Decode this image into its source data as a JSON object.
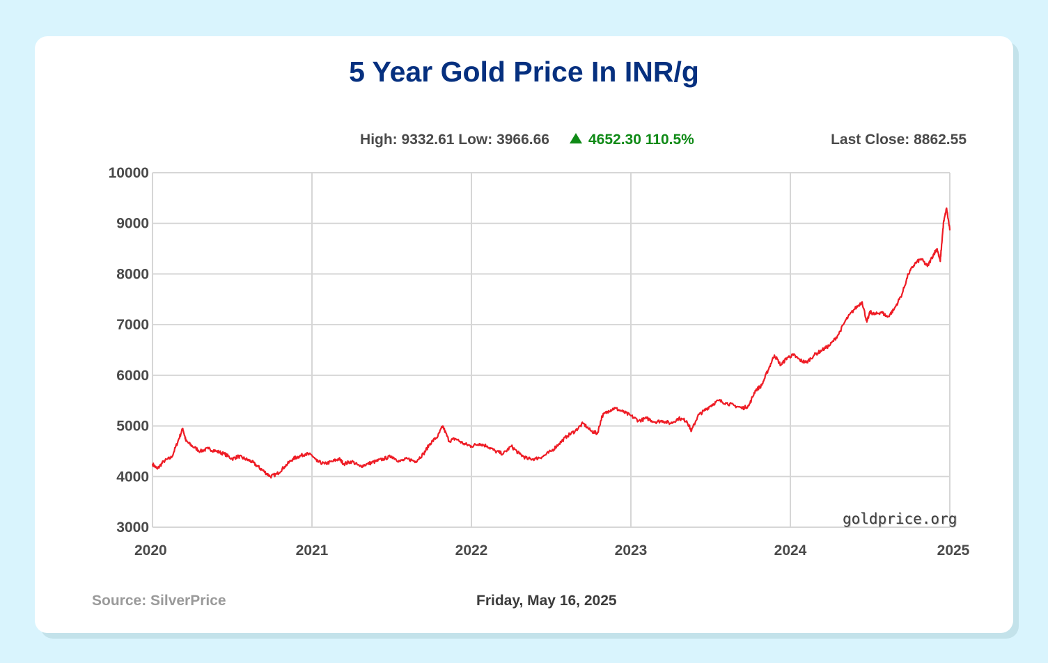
{
  "title": "5 Year Gold Price In INR/g",
  "stats": {
    "high_low": "High: 9332.61 Low: 3966.66",
    "change": "4652.30 110.5%",
    "last_close": "Last Close: 8862.55"
  },
  "footer": {
    "source": "Source: SilverPrice",
    "date": "Friday, May 16, 2025"
  },
  "watermark": "goldprice.org",
  "colors": {
    "line": "#ee1c25",
    "title": "#06307f",
    "up": "#0f8a16",
    "background": "#d9f4fd"
  },
  "chart_data": {
    "type": "line",
    "title": "5 Year Gold Price In INR/g",
    "xlabel": "",
    "ylabel": "",
    "xlim": [
      2020.0,
      2025.0
    ],
    "ylim": [
      3000,
      10000
    ],
    "x_ticks": [
      2020,
      2021,
      2022,
      2023,
      2024,
      2025
    ],
    "x_tick_labels": [
      "2020",
      "2021",
      "2022",
      "2023",
      "2024",
      "2025"
    ],
    "y_ticks": [
      3000,
      4000,
      5000,
      6000,
      7000,
      8000,
      9000,
      10000
    ],
    "y_tick_labels": [
      "3000",
      "4000",
      "5000",
      "6000",
      "7000",
      "8000",
      "9000",
      "10000"
    ],
    "grid": true,
    "series": [
      {
        "x": [
          2020.0,
          2020.03,
          2020.07,
          2020.12,
          2020.16,
          2020.19,
          2020.21,
          2020.25,
          2020.3,
          2020.35,
          2020.4,
          2020.45,
          2020.5,
          2020.54,
          2020.58,
          2020.62,
          2020.66,
          2020.7,
          2020.74,
          2020.78,
          2020.83,
          2020.88,
          2020.92,
          2020.96,
          2021.0,
          2021.03,
          2021.08,
          2021.13,
          2021.17,
          2021.2,
          2021.25,
          2021.3,
          2021.35,
          2021.4,
          2021.45,
          2021.5,
          2021.55,
          2021.6,
          2021.65,
          2021.7,
          2021.74,
          2021.79,
          2021.82,
          2021.86,
          2021.9,
          2021.95,
          2022.0,
          2022.05,
          2022.1,
          2022.15,
          2022.2,
          2022.25,
          2022.3,
          2022.35,
          2022.4,
          2022.45,
          2022.5,
          2022.55,
          2022.6,
          2022.65,
          2022.7,
          2022.75,
          2022.79,
          2022.82,
          2022.86,
          2022.9,
          2022.95,
          2023.0,
          2023.05,
          2023.1,
          2023.15,
          2023.2,
          2023.25,
          2023.3,
          2023.35,
          2023.38,
          2023.42,
          2023.46,
          2023.5,
          2023.55,
          2023.6,
          2023.65,
          2023.7,
          2023.74,
          2023.78,
          2023.82,
          2023.86,
          2023.9,
          2023.94,
          2023.98,
          2024.02,
          2024.06,
          2024.1,
          2024.15,
          2024.2,
          2024.25,
          2024.3,
          2024.35,
          2024.4,
          2024.45,
          2024.48,
          2024.5,
          2024.53,
          2024.57,
          2024.61,
          2024.65,
          2024.7,
          2024.74,
          2024.78,
          2024.82,
          2024.86,
          2024.9,
          2024.92,
          2024.94,
          2024.96,
          2024.98,
          2025.0
        ],
        "y": [
          4250,
          4150,
          4300,
          4380,
          4700,
          4950,
          4700,
          4600,
          4500,
          4550,
          4500,
          4450,
          4350,
          4400,
          4350,
          4300,
          4200,
          4100,
          4000,
          4050,
          4200,
          4350,
          4400,
          4450,
          4420,
          4300,
          4250,
          4300,
          4350,
          4250,
          4300,
          4200,
          4250,
          4300,
          4350,
          4400,
          4300,
          4350,
          4300,
          4450,
          4650,
          4800,
          5000,
          4700,
          4750,
          4650,
          4600,
          4650,
          4600,
          4500,
          4450,
          4600,
          4450,
          4350,
          4350,
          4400,
          4500,
          4650,
          4800,
          4900,
          5050,
          4900,
          4850,
          5200,
          5300,
          5350,
          5280,
          5200,
          5100,
          5150,
          5080,
          5100,
          5050,
          5150,
          5100,
          4900,
          5200,
          5300,
          5400,
          5500,
          5450,
          5400,
          5350,
          5400,
          5700,
          5800,
          6100,
          6400,
          6200,
          6350,
          6400,
          6300,
          6250,
          6400,
          6500,
          6600,
          6800,
          7100,
          7300,
          7450,
          7050,
          7250,
          7200,
          7250,
          7150,
          7300,
          7600,
          8000,
          8200,
          8300,
          8150,
          8400,
          8500,
          8250,
          9000,
          9300,
          8862.55
        ]
      }
    ]
  }
}
